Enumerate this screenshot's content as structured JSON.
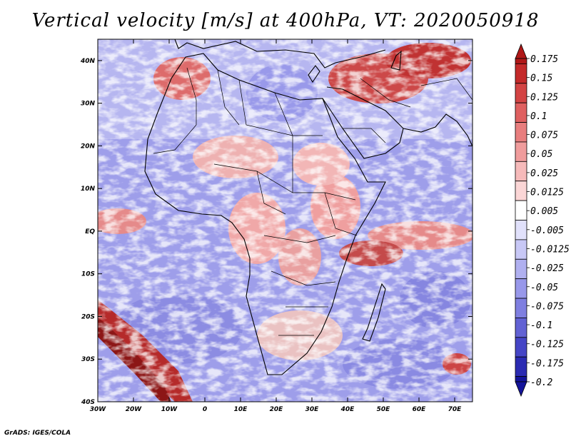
{
  "title": "Vertical velocity [m/s] at 400hPa, VT: 2020050918",
  "credit": "GrADS: IGES/COLA",
  "map": {
    "lat_labels": [
      "40N",
      "30N",
      "20N",
      "10N",
      "EQ",
      "10S",
      "20S",
      "30S",
      "40S"
    ],
    "lat_values": [
      40,
      30,
      20,
      10,
      0,
      -10,
      -20,
      -30,
      -40
    ],
    "lon_labels": [
      "30W",
      "20W",
      "10W",
      "0",
      "10E",
      "20E",
      "30E",
      "40E",
      "50E",
      "60E",
      "70E"
    ],
    "lon_values": [
      -30,
      -20,
      -10,
      0,
      10,
      20,
      30,
      40,
      50,
      60,
      70
    ],
    "lon_range": [
      -30,
      75
    ],
    "lat_range": [
      -40,
      45
    ]
  },
  "colorbar": {
    "labels": [
      "0.175",
      "0.15",
      "0.125",
      "0.1",
      "0.075",
      "0.05",
      "0.025",
      "0.0125",
      "0.005",
      "-0.005",
      "-0.0125",
      "-0.025",
      "-0.05",
      "-0.075",
      "-0.1",
      "-0.125",
      "-0.175",
      "-0.2"
    ],
    "colors": [
      "#b01818",
      "#c42a2a",
      "#d34444",
      "#df6060",
      "#e87e7e",
      "#f09c9c",
      "#f6baba",
      "#fbd6d6",
      "#ffffff",
      "#e1e1fb",
      "#c8c8f6",
      "#b0b0f0",
      "#9898ea",
      "#7f7fe0",
      "#6262d4",
      "#4545c6",
      "#2b2bb2",
      "#14149a"
    ]
  }
}
